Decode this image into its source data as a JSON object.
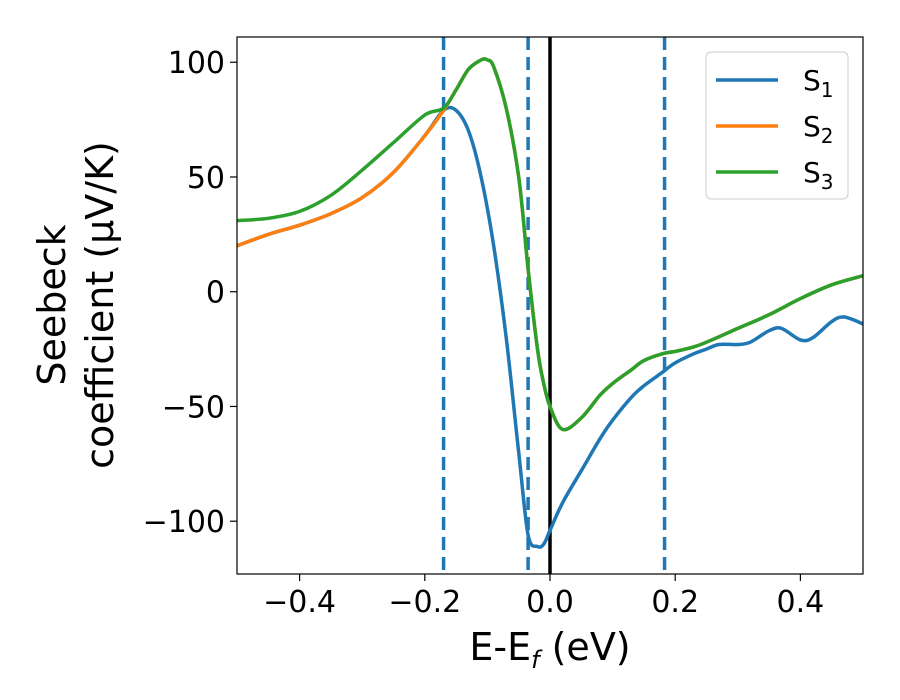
{
  "chart_data": {
    "type": "line",
    "xlabel": "E-E",
    "xlabel_sub": "f",
    "xlabel_unit": " (eV)",
    "ylabel_line1": "Seebeck",
    "ylabel_line2": "coefficient  (μV/K)",
    "xlim": [
      -0.5,
      0.5
    ],
    "ylim": [
      -123,
      111
    ],
    "x_ticks": [
      -0.4,
      -0.2,
      0.0,
      0.2,
      0.4
    ],
    "x_tick_labels": [
      "−0.4",
      "−0.2",
      "0.0",
      "0.2",
      "0.4"
    ],
    "y_ticks": [
      -100,
      -50,
      0,
      50,
      100
    ],
    "y_tick_labels": [
      "−100",
      "−50",
      "0",
      "50",
      "100"
    ],
    "grid": false,
    "legend_position": "top-right",
    "vlines_dashed": {
      "x": [
        -0.17,
        -0.035,
        0.183
      ],
      "color": "#1f77b4"
    },
    "vline_solid": {
      "x": 0.0,
      "color": "#000000"
    },
    "series": [
      {
        "name": "S",
        "name_sub": "1",
        "color": "#1f77b4",
        "x": [
          -0.5,
          -0.45,
          -0.4,
          -0.35,
          -0.3,
          -0.25,
          -0.2,
          -0.17,
          -0.15,
          -0.13,
          -0.11,
          -0.09,
          -0.07,
          -0.05,
          -0.035,
          -0.02,
          -0.01,
          0.0,
          0.02,
          0.05,
          0.08,
          0.1,
          0.13,
          0.15,
          0.18,
          0.2,
          0.23,
          0.25,
          0.27,
          0.3,
          0.32,
          0.35,
          0.37,
          0.4,
          0.42,
          0.45,
          0.47,
          0.5
        ],
        "y": [
          20,
          25,
          29,
          34,
          41,
          52,
          68,
          79,
          79,
          70,
          50,
          20,
          -20,
          -70,
          -106,
          -111,
          -110,
          -104,
          -92,
          -78,
          -64,
          -56,
          -46,
          -41,
          -35,
          -31,
          -27,
          -25,
          -23,
          -23,
          -22,
          -17,
          -16,
          -21,
          -20,
          -13,
          -11,
          -14
        ]
      },
      {
        "name": "S",
        "name_sub": "2",
        "color": "#ff7f0e",
        "x": [
          -0.5,
          -0.45,
          -0.4,
          -0.35,
          -0.3,
          -0.25,
          -0.2,
          -0.17,
          -0.15,
          -0.13,
          -0.11,
          -0.1,
          -0.09,
          -0.07,
          -0.05,
          -0.035,
          -0.02,
          -0.01,
          0.0,
          0.02,
          0.05,
          0.08,
          0.1,
          0.13,
          0.15,
          0.18,
          0.2,
          0.23,
          0.25,
          0.3,
          0.35,
          0.4,
          0.45,
          0.5
        ],
        "y": [
          20,
          25,
          29,
          34,
          41,
          52,
          68,
          79,
          88,
          97,
          101,
          101,
          98,
          80,
          50,
          10,
          -25,
          -40,
          -50,
          -60,
          -55,
          -45,
          -40,
          -34,
          -30,
          -27,
          -26,
          -24,
          -22,
          -16,
          -10,
          -3,
          3,
          7
        ]
      },
      {
        "name": "S",
        "name_sub": "3",
        "color": "#2ca02c",
        "x": [
          -0.5,
          -0.45,
          -0.4,
          -0.35,
          -0.3,
          -0.25,
          -0.2,
          -0.17,
          -0.15,
          -0.13,
          -0.11,
          -0.1,
          -0.09,
          -0.07,
          -0.05,
          -0.035,
          -0.02,
          -0.01,
          0.0,
          0.02,
          0.05,
          0.08,
          0.1,
          0.13,
          0.15,
          0.18,
          0.2,
          0.23,
          0.25,
          0.3,
          0.35,
          0.4,
          0.45,
          0.5
        ],
        "y": [
          31,
          32,
          35,
          42,
          53,
          65,
          77,
          80,
          88,
          97,
          101,
          101,
          98,
          80,
          50,
          10,
          -25,
          -40,
          -50,
          -60,
          -55,
          -45,
          -40,
          -34,
          -30,
          -27,
          -26,
          -24,
          -22,
          -16,
          -10,
          -3,
          3,
          7
        ]
      }
    ]
  }
}
